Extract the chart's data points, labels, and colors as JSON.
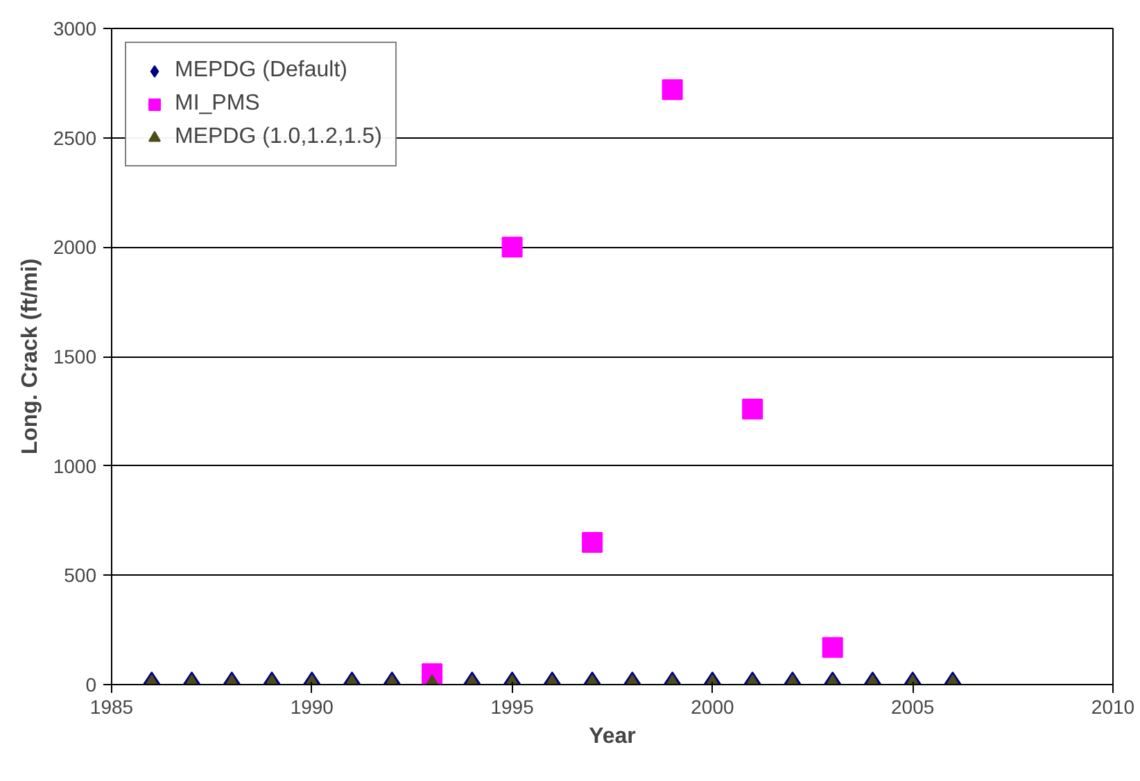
{
  "chart_data": {
    "type": "scatter",
    "xlabel": "Year",
    "ylabel": "Long. Crack (ft/mi)",
    "xlim": [
      1985,
      2010
    ],
    "xticks": [
      1985,
      1990,
      1995,
      2000,
      2005,
      2010
    ],
    "ylim": [
      0,
      3000
    ],
    "yticks": [
      0,
      500,
      1000,
      1500,
      2000,
      2500,
      3000
    ],
    "grid": "y",
    "legend": "top left",
    "series": [
      {
        "name": "MEPDG (Default)",
        "color": "#000080",
        "marker": "diamond",
        "x": [
          1986,
          1987,
          1988,
          1989,
          1990,
          1991,
          1992,
          1993,
          1994,
          1995,
          1996,
          1997,
          1998,
          1999,
          2000,
          2001,
          2002,
          2003,
          2004,
          2005,
          2006
        ],
        "values": [
          0,
          0,
          0,
          0,
          0,
          0,
          0,
          null,
          0,
          0,
          0,
          0,
          0,
          0,
          0,
          0,
          0,
          0,
          0,
          0,
          0
        ]
      },
      {
        "name": "MI_PMS",
        "color": "#ff00ff",
        "marker": "square",
        "x": [
          1993,
          1995,
          1997,
          1999,
          2001,
          2003
        ],
        "values": [
          50,
          2000,
          650,
          2720,
          1260,
          170
        ]
      },
      {
        "name": "MEPDG (1.0,1.2,1.5)",
        "color": "#4d4d1a",
        "marker": "triangle",
        "x": [
          1986,
          1987,
          1988,
          1989,
          1990,
          1991,
          1992,
          1993,
          1994,
          1995,
          1996,
          1997,
          1998,
          1999,
          2000,
          2001,
          2002,
          2003,
          2004,
          2005,
          2006
        ],
        "values": [
          0,
          0,
          0,
          0,
          0,
          0,
          0,
          0,
          0,
          0,
          0,
          0,
          0,
          0,
          0,
          0,
          0,
          0,
          0,
          0,
          0
        ]
      }
    ]
  }
}
